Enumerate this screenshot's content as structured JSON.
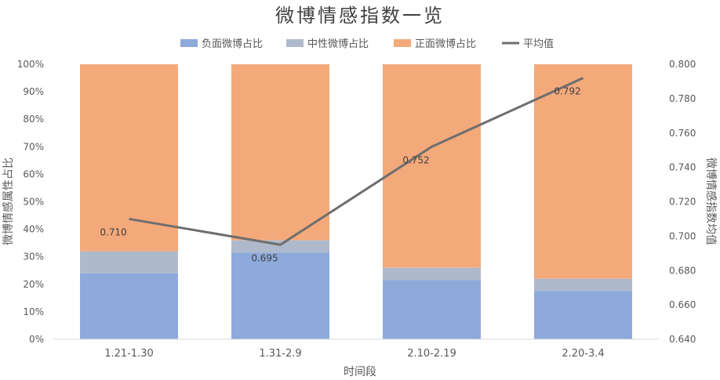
{
  "chart_data": {
    "type": "bar",
    "title": "微博情感指数一览",
    "categories": [
      "1.21-1.30",
      "1.31-2.9",
      "2.10-2.19",
      "2.20-3.4"
    ],
    "series": [
      {
        "name": "负面微博占比",
        "type": "bar",
        "axis": "left",
        "color": "#8eaadb",
        "values": [
          0.24,
          0.315,
          0.215,
          0.175
        ]
      },
      {
        "name": "中性微博占比",
        "type": "bar",
        "axis": "left",
        "color": "#aeb9cc",
        "values": [
          0.08,
          0.045,
          0.045,
          0.045
        ]
      },
      {
        "name": "正面微博占比",
        "type": "bar",
        "axis": "left",
        "color": "#f4a97b",
        "values": [
          0.68,
          0.64,
          0.74,
          0.78
        ]
      },
      {
        "name": "平均值",
        "type": "line",
        "axis": "right",
        "color": "#6e6e6e",
        "values": [
          0.71,
          0.695,
          0.752,
          0.792
        ],
        "labels": [
          "0.710",
          "0.695",
          "0.752",
          "0.792"
        ]
      }
    ],
    "xlabel": "时间段",
    "ylabel_left": "微博情感属性占比",
    "ylabel_right": "微博情感指数均值",
    "ylim_left": [
      0,
      1
    ],
    "ylim_right": [
      0.64,
      0.8
    ],
    "yticks_left": [
      "0%",
      "10%",
      "20%",
      "30%",
      "40%",
      "50%",
      "60%",
      "70%",
      "80%",
      "90%",
      "100%"
    ],
    "yticks_right": [
      "0.640",
      "0.660",
      "0.680",
      "0.700",
      "0.720",
      "0.740",
      "0.760",
      "0.780",
      "0.800"
    ],
    "legend_position": "top",
    "grid": false
  }
}
